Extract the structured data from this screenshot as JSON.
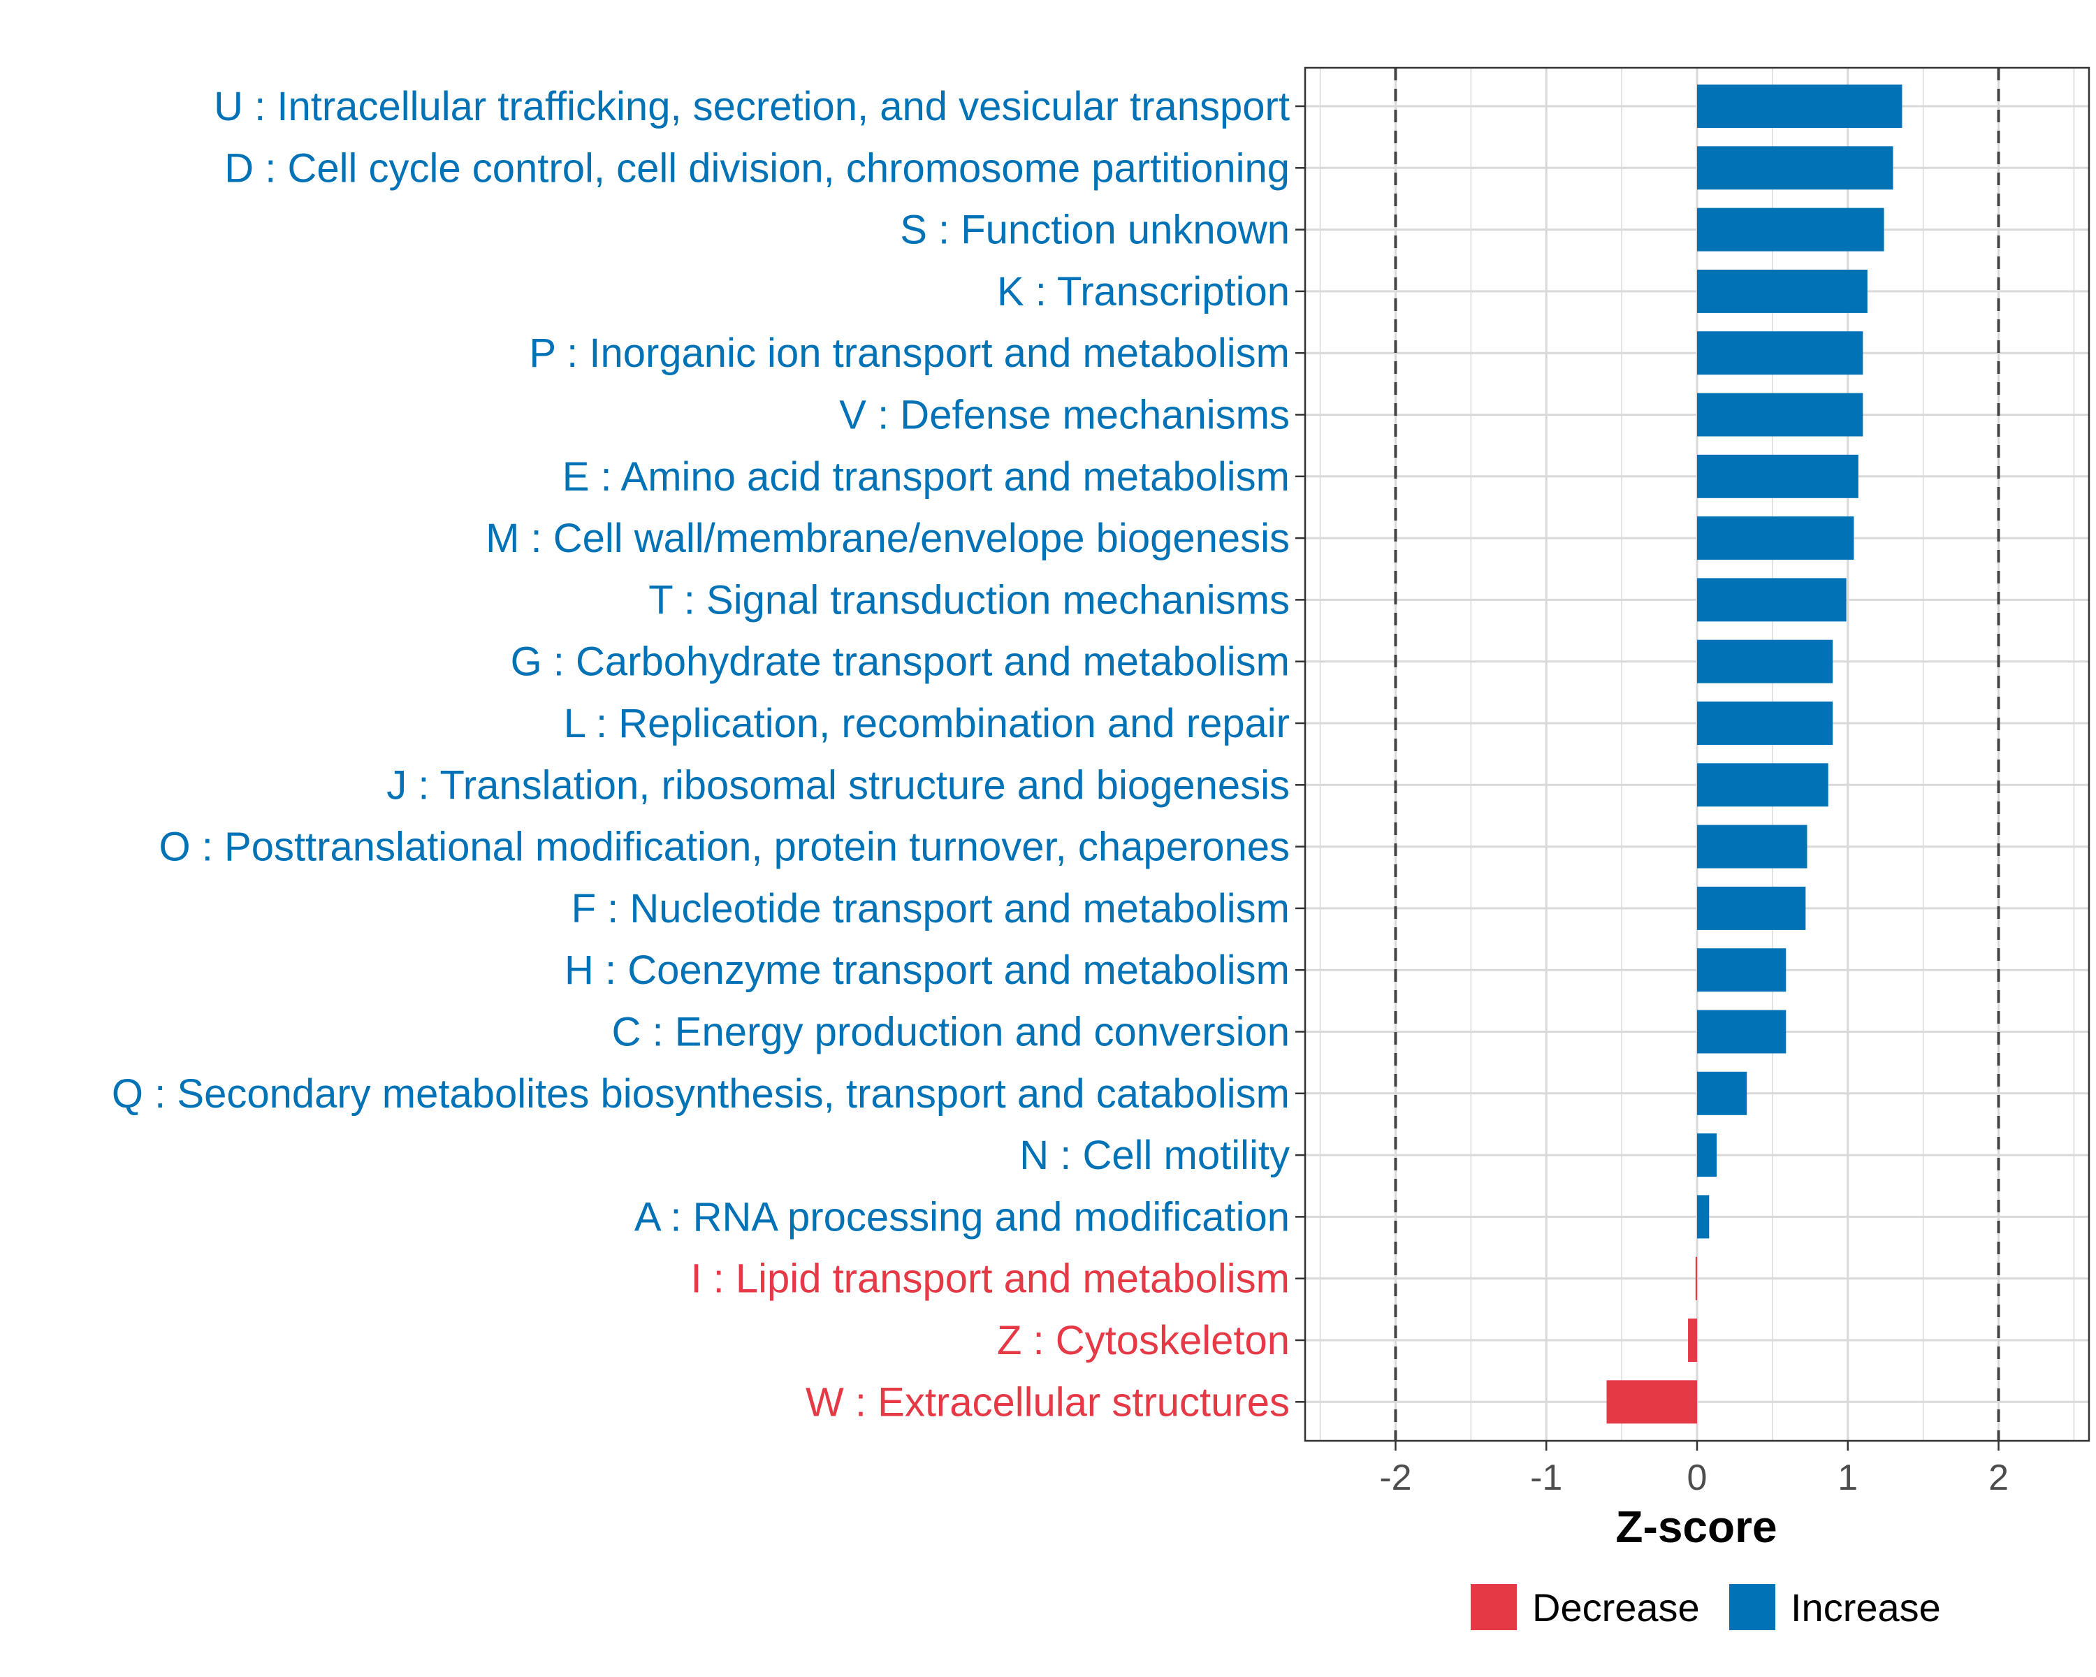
{
  "colors": {
    "increase": "#0072B5",
    "decrease": "#E63946",
    "grid": "#d9d9d9",
    "axis": "#333333",
    "reference_line": "#444444"
  },
  "chart_data": {
    "type": "bar",
    "orientation": "horizontal",
    "xlabel": "Z-score",
    "xlim": [
      -2.6,
      2.6
    ],
    "xticks": [
      -2,
      -1,
      0,
      1,
      2
    ],
    "xtick_labels": [
      "-2",
      "-1",
      "0",
      "1",
      "2"
    ],
    "reference_lines": [
      -2,
      2
    ],
    "grid": true,
    "categories": [
      "U : Intracellular trafficking, secretion, and vesicular transport",
      "D : Cell cycle control, cell division, chromosome partitioning",
      "S : Function unknown",
      "K : Transcription",
      "P : Inorganic ion transport and metabolism",
      "V : Defense mechanisms",
      "E : Amino acid transport and metabolism",
      "M : Cell wall/membrane/envelope biogenesis",
      "T : Signal transduction mechanisms",
      "G : Carbohydrate transport and metabolism",
      "L : Replication, recombination and repair",
      "J : Translation, ribosomal structure and biogenesis",
      "O : Posttranslational modification, protein turnover, chaperones",
      "F : Nucleotide transport and metabolism",
      "H : Coenzyme transport and metabolism",
      "C : Energy production and conversion",
      "Q : Secondary metabolites biosynthesis, transport and catabolism",
      "N : Cell motility",
      "A : RNA processing and modification",
      "I : Lipid transport and metabolism",
      "Z : Cytoskeleton",
      "W : Extracellular structures"
    ],
    "values": [
      1.36,
      1.3,
      1.24,
      1.13,
      1.1,
      1.1,
      1.07,
      1.04,
      0.99,
      0.9,
      0.9,
      0.87,
      0.73,
      0.72,
      0.59,
      0.59,
      0.33,
      0.13,
      0.08,
      -0.01,
      -0.06,
      -0.6
    ],
    "direction": [
      "Increase",
      "Increase",
      "Increase",
      "Increase",
      "Increase",
      "Increase",
      "Increase",
      "Increase",
      "Increase",
      "Increase",
      "Increase",
      "Increase",
      "Increase",
      "Increase",
      "Increase",
      "Increase",
      "Increase",
      "Increase",
      "Increase",
      "Decrease",
      "Decrease",
      "Decrease"
    ],
    "legend": {
      "position": "bottom",
      "entries": [
        {
          "label": "Decrease",
          "color": "#E63946"
        },
        {
          "label": "Increase",
          "color": "#0072B5"
        }
      ]
    }
  }
}
